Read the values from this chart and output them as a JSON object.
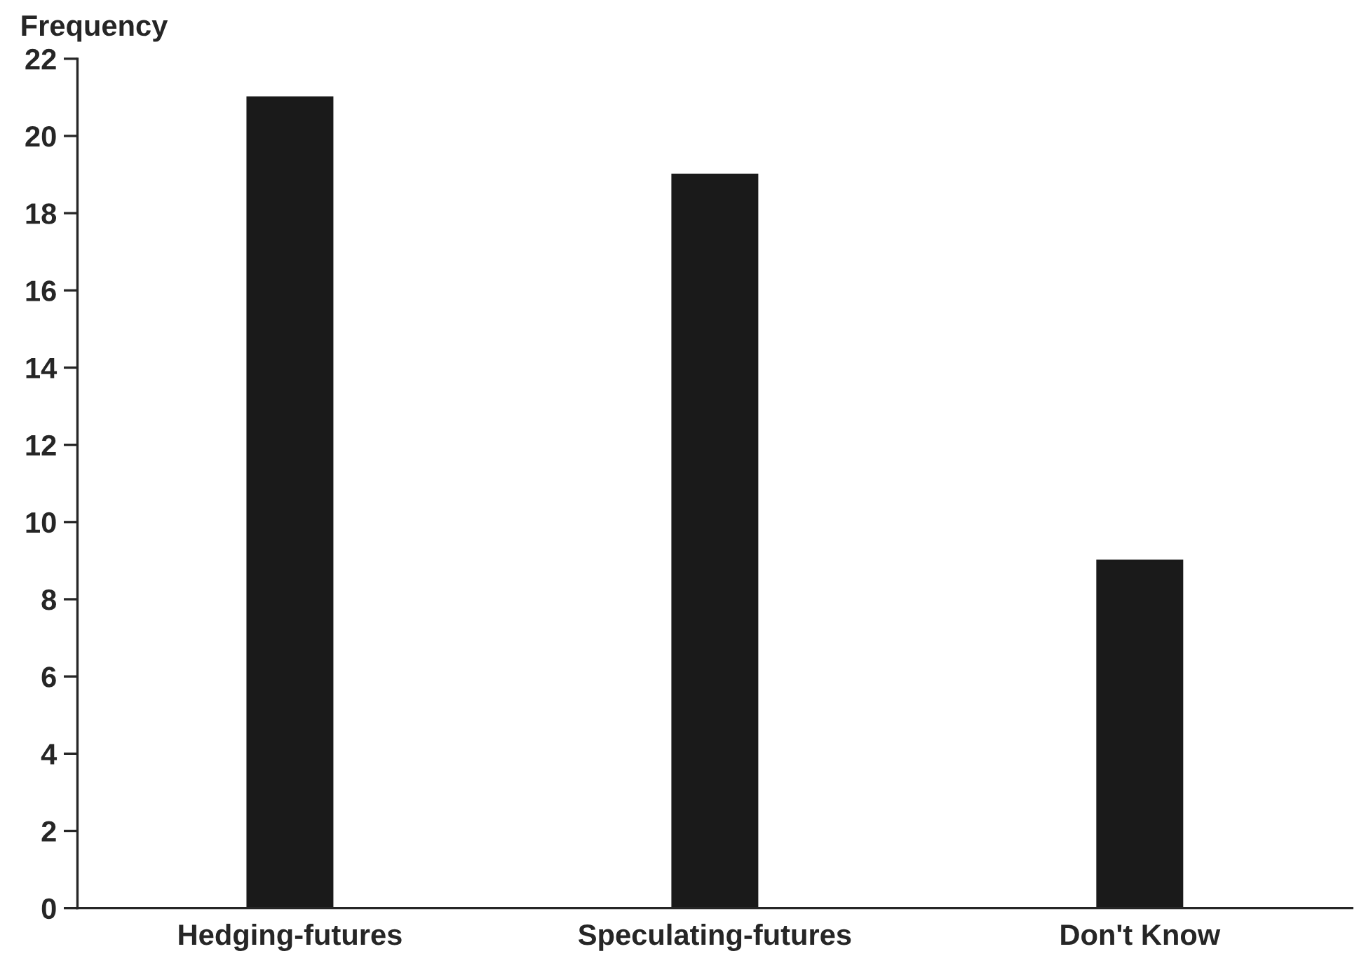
{
  "chart_data": {
    "type": "bar",
    "ylabel": "Frequency",
    "categories": [
      "Hedging-futures",
      "Speculating-futures",
      "Don't Know"
    ],
    "values": [
      21,
      19,
      9
    ],
    "color": "#1a1a1a",
    "ylim": [
      0,
      22
    ],
    "yticks": [
      0,
      2,
      4,
      6,
      8,
      10,
      12,
      14,
      16,
      18,
      20,
      22
    ],
    "grid": false,
    "legend": false
  }
}
